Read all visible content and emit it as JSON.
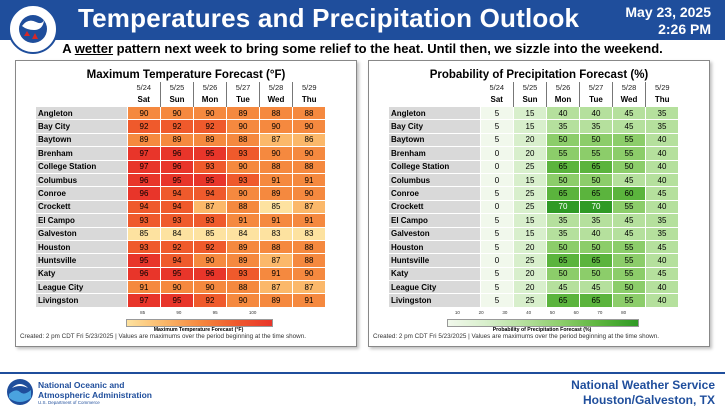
{
  "header": {
    "title": "Temperatures and Precipitation Outlook",
    "date": "May 23, 2025",
    "time": "2:26 PM",
    "logo_text": "NATIONAL WEATHER SERVICE"
  },
  "subtitle": {
    "pre": "A ",
    "emph": "wetter",
    "post": " pattern next week to bring some relief to the heat. Until then, we sizzle into the weekend."
  },
  "days": [
    {
      "date": "5/24",
      "day": "Sat"
    },
    {
      "date": "5/25",
      "day": "Sun"
    },
    {
      "date": "5/26",
      "day": "Mon"
    },
    {
      "date": "5/27",
      "day": "Tue"
    },
    {
      "date": "5/28",
      "day": "Wed"
    },
    {
      "date": "5/29",
      "day": "Thu"
    }
  ],
  "cities": [
    "Angleton",
    "Bay City",
    "Baytown",
    "Brenham",
    "College Station",
    "Columbus",
    "Conroe",
    "Crockett",
    "El Campo",
    "Galveston",
    "Houston",
    "Huntsville",
    "Katy",
    "League City",
    "Livingston"
  ],
  "temp": {
    "title": "Maximum Temperature Forecast (°F)",
    "values": [
      [
        90,
        90,
        90,
        89,
        88,
        88
      ],
      [
        92,
        92,
        92,
        90,
        90,
        90
      ],
      [
        89,
        89,
        89,
        88,
        87,
        86
      ],
      [
        97,
        96,
        95,
        93,
        90,
        90
      ],
      [
        97,
        96,
        93,
        90,
        88,
        88
      ],
      [
        96,
        95,
        95,
        93,
        91,
        91
      ],
      [
        96,
        94,
        94,
        90,
        89,
        90
      ],
      [
        94,
        94,
        87,
        88,
        85,
        87
      ],
      [
        93,
        93,
        93,
        91,
        91,
        91
      ],
      [
        85,
        84,
        85,
        84,
        83,
        83
      ],
      [
        93,
        92,
        92,
        89,
        88,
        88
      ],
      [
        95,
        94,
        90,
        89,
        87,
        88
      ],
      [
        96,
        95,
        96,
        93,
        91,
        90
      ],
      [
        91,
        90,
        90,
        88,
        87,
        87
      ],
      [
        97,
        95,
        92,
        90,
        89,
        91
      ]
    ],
    "colorbar_ticks": [
      "85",
      "90",
      "95",
      "100"
    ],
    "colorbar_label": "Maximum Temperature Forecast (°F)",
    "note": "Created: 2 pm CDT Fri 5/23/2025  |  Values are maximums over the period beginning at the time shown."
  },
  "precip": {
    "title": "Probability of Precipitation Forecast (%)",
    "values": [
      [
        5,
        15,
        40,
        40,
        45,
        35
      ],
      [
        5,
        15,
        35,
        35,
        45,
        35
      ],
      [
        5,
        20,
        50,
        50,
        55,
        40
      ],
      [
        0,
        20,
        55,
        55,
        55,
        40
      ],
      [
        0,
        25,
        65,
        65,
        50,
        40
      ],
      [
        0,
        15,
        50,
        50,
        45,
        40
      ],
      [
        5,
        25,
        65,
        65,
        60,
        45
      ],
      [
        0,
        25,
        70,
        70,
        55,
        40
      ],
      [
        5,
        15,
        35,
        35,
        45,
        35
      ],
      [
        5,
        15,
        35,
        40,
        45,
        35
      ],
      [
        5,
        20,
        50,
        50,
        55,
        45
      ],
      [
        0,
        25,
        65,
        65,
        55,
        40
      ],
      [
        5,
        20,
        50,
        50,
        55,
        45
      ],
      [
        5,
        20,
        45,
        45,
        50,
        40
      ],
      [
        5,
        25,
        65,
        65,
        55,
        40
      ]
    ],
    "colorbar_ticks": [
      "10",
      "20",
      "30",
      "40",
      "50",
      "60",
      "70",
      "80"
    ],
    "colorbar_label": "Probability of Precipitation Forecast (%)",
    "note": "Created: 2 pm CDT Fri 5/23/2025  |  Values are maximums over the period beginning at the time shown."
  },
  "footer": {
    "org_line1": "National Oceanic and",
    "org_line2": "Atmospheric Administration",
    "org_sub": "U.S. Department of Commerce",
    "nws_line1": "National Weather Service",
    "nws_line2": "Houston/Galveston, TX"
  },
  "colors": {
    "header_bg": "#1f4e9c",
    "temp_scale": [
      "#fde2a0",
      "#fbb86a",
      "#f5893f",
      "#ef5a2c",
      "#e8352a"
    ],
    "precip_scale": [
      "#f1f8ec",
      "#d8efcc",
      "#b5e09d",
      "#8ccd6a",
      "#5bb43d",
      "#2f9a25"
    ]
  }
}
